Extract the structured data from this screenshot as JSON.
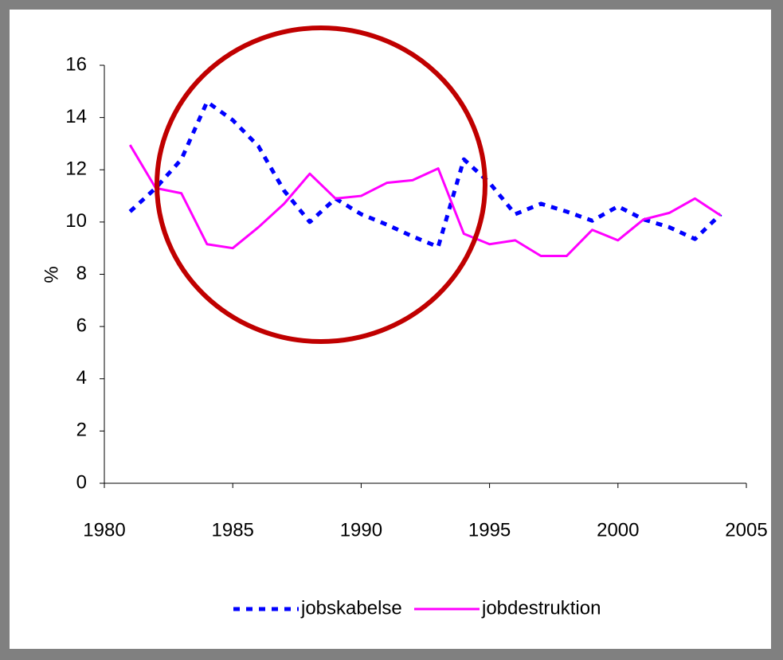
{
  "chart_data": {
    "type": "line",
    "y_label": "%",
    "x": [
      1981,
      1982,
      1983,
      1984,
      1985,
      1986,
      1987,
      1988,
      1989,
      1990,
      1991,
      1992,
      1993,
      1994,
      1995,
      1996,
      1997,
      1998,
      1999,
      2000,
      2001,
      2002,
      2003,
      2004
    ],
    "series": [
      {
        "name": "jobskabelse",
        "color": "#0000ff",
        "dash": true,
        "values": [
          10.4,
          11.3,
          12.4,
          14.6,
          13.9,
          12.9,
          11.2,
          10.0,
          10.9,
          10.3,
          9.9,
          9.45,
          9.05,
          12.4,
          11.5,
          10.3,
          10.7,
          10.4,
          10.05,
          10.6,
          10.1,
          9.8,
          9.35,
          10.3
        ]
      },
      {
        "name": "jobdestruktion",
        "color": "#ff00ff",
        "dash": false,
        "values": [
          12.95,
          11.3,
          11.1,
          9.15,
          9.0,
          9.8,
          10.7,
          11.85,
          10.9,
          11.0,
          11.5,
          11.6,
          12.05,
          9.55,
          9.15,
          9.3,
          8.7,
          8.7,
          9.7,
          9.3,
          10.1,
          10.35,
          10.9,
          10.25
        ]
      }
    ],
    "xlim": [
      1980,
      2005
    ],
    "xticks": [
      1980,
      1985,
      1990,
      1995,
      2000,
      2005
    ],
    "ylim": [
      0,
      16
    ],
    "yticks": [
      0,
      2,
      4,
      6,
      8,
      10,
      12,
      14,
      16
    ]
  }
}
